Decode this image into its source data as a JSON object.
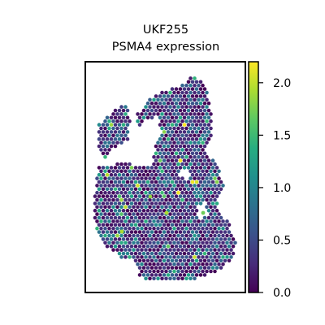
{
  "chart_data": {
    "type": "heatmap",
    "title": "UKF255",
    "subtitle": "PSMA4 expression",
    "xlabel": "",
    "ylabel": "",
    "colorbar": {
      "colormap": "viridis",
      "range": [
        0,
        2.2
      ],
      "ticks": [
        0.0,
        0.5,
        1.0,
        1.5,
        2.0
      ],
      "tick_labels": [
        "0.0",
        "0.5",
        "1.0",
        "1.5",
        "2.0"
      ],
      "position": "right"
    },
    "value_summary": {
      "typical_low": 0.0,
      "typical_mid": 0.8,
      "max": 2.2
    },
    "colors": {
      "low": "#440154",
      "mid": "#21918c",
      "high": "#fde725"
    }
  }
}
